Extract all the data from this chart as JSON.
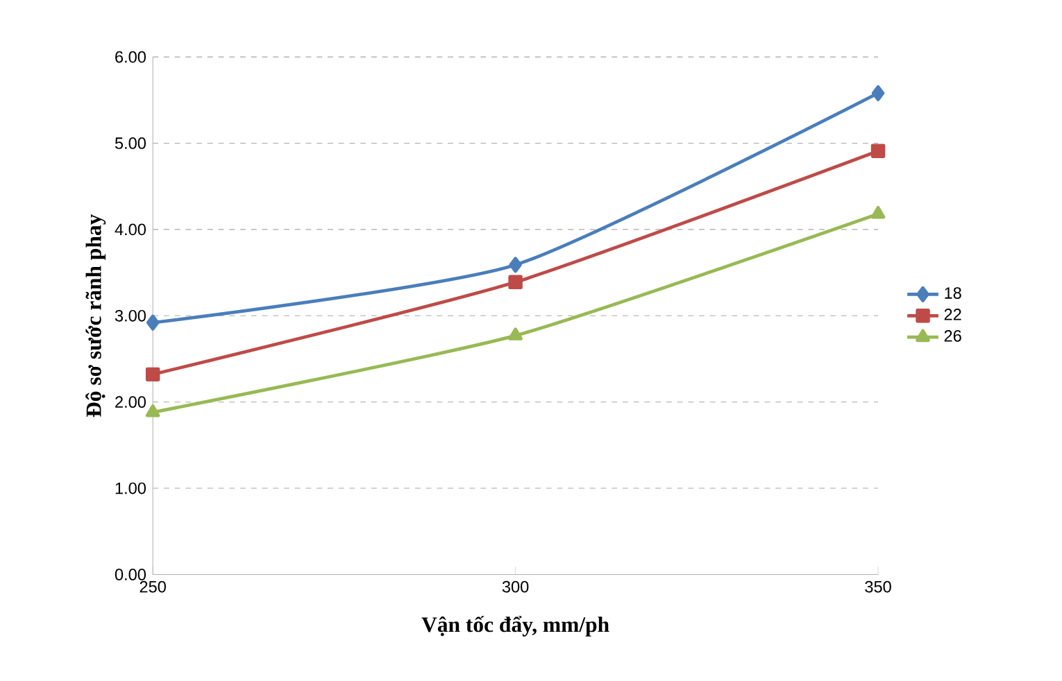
{
  "chart_data": {
    "type": "line",
    "xlabel": "Vận tốc đẩy, mm/ph",
    "ylabel": "Độ sơ sước rãnh phay",
    "x": [
      250,
      300,
      350
    ],
    "xlim": [
      250,
      350
    ],
    "xticks": [
      250,
      300,
      350
    ],
    "ylim": [
      0,
      6
    ],
    "yticks": [
      {
        "value": 0,
        "label": "0.00"
      },
      {
        "value": 1,
        "label": "1.00"
      },
      {
        "value": 2,
        "label": "2.00"
      },
      {
        "value": 3,
        "label": "3.00"
      },
      {
        "value": 4,
        "label": "4.00"
      },
      {
        "value": 5,
        "label": "5.00"
      },
      {
        "value": 6,
        "label": "6.00"
      }
    ],
    "grid": "y",
    "legend": "right",
    "line_style": "solid",
    "series": [
      {
        "name": "18",
        "color": "#4a7ebb",
        "marker": "diamond",
        "values": [
          2.92,
          3.59,
          5.58
        ]
      },
      {
        "name": "22",
        "color": "#be4b48",
        "marker": "square",
        "values": [
          2.32,
          3.39,
          4.91
        ]
      },
      {
        "name": "26",
        "color": "#98b954",
        "marker": "triangle",
        "values": [
          1.88,
          2.77,
          4.18
        ]
      }
    ]
  }
}
